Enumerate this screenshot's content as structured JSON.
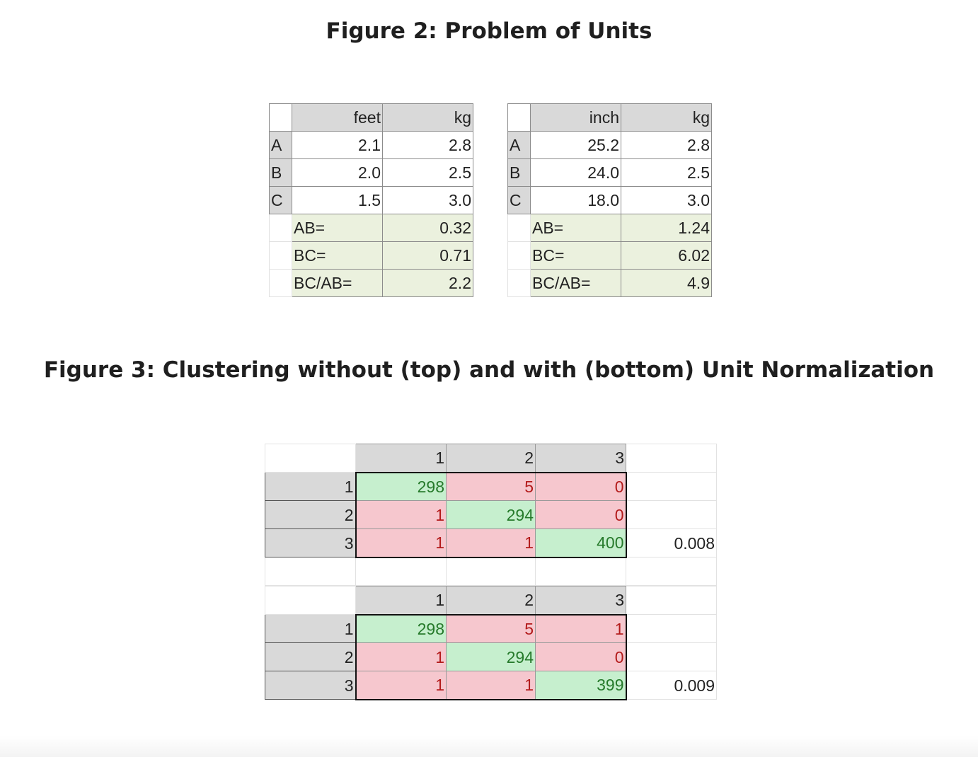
{
  "figure2": {
    "title": "Figure 2: Problem of Units",
    "left": {
      "headers": [
        "feet",
        "kg"
      ],
      "rows": [
        {
          "label": "A",
          "v1": "2.1",
          "v2": "2.8"
        },
        {
          "label": "B",
          "v1": "2.0",
          "v2": "2.5"
        },
        {
          "label": "C",
          "v1": "1.5",
          "v2": "3.0"
        }
      ],
      "calcs": [
        {
          "label": "AB=",
          "value": "0.32"
        },
        {
          "label": "BC=",
          "value": "0.71"
        },
        {
          "label": "BC/AB=",
          "value": "2.2"
        }
      ]
    },
    "right": {
      "headers": [
        "inch",
        "kg"
      ],
      "rows": [
        {
          "label": "A",
          "v1": "25.2",
          "v2": "2.8"
        },
        {
          "label": "B",
          "v1": "24.0",
          "v2": "2.5"
        },
        {
          "label": "C",
          "v1": "18.0",
          "v2": "3.0"
        }
      ],
      "calcs": [
        {
          "label": "AB=",
          "value": "1.24"
        },
        {
          "label": "BC=",
          "value": "6.02"
        },
        {
          "label": "BC/AB=",
          "value": "4.9"
        }
      ]
    }
  },
  "figure3": {
    "title": "Figure 3: Clustering without (top) and with (bottom) Unit Normalization",
    "top": {
      "col_headers": [
        "1",
        "2",
        "3"
      ],
      "row_headers": [
        "1",
        "2",
        "3"
      ],
      "cells": [
        [
          "298",
          "5",
          "0"
        ],
        [
          "1",
          "294",
          "0"
        ],
        [
          "1",
          "1",
          "400"
        ]
      ],
      "score": "0.008"
    },
    "bottom": {
      "col_headers": [
        "1",
        "2",
        "3"
      ],
      "row_headers": [
        "1",
        "2",
        "3"
      ],
      "cells": [
        [
          "298",
          "5",
          "1"
        ],
        [
          "1",
          "294",
          "0"
        ],
        [
          "1",
          "1",
          "399"
        ]
      ],
      "score": "0.009"
    }
  },
  "colors": {
    "header_gray": "#d9d9d9",
    "calc_green": "#ebf1de",
    "diag_green": "#c6efce",
    "diag_text": "#267a2b",
    "offdiag_red": "#f6c7ce",
    "offdiag_text": "#b31b1b"
  }
}
